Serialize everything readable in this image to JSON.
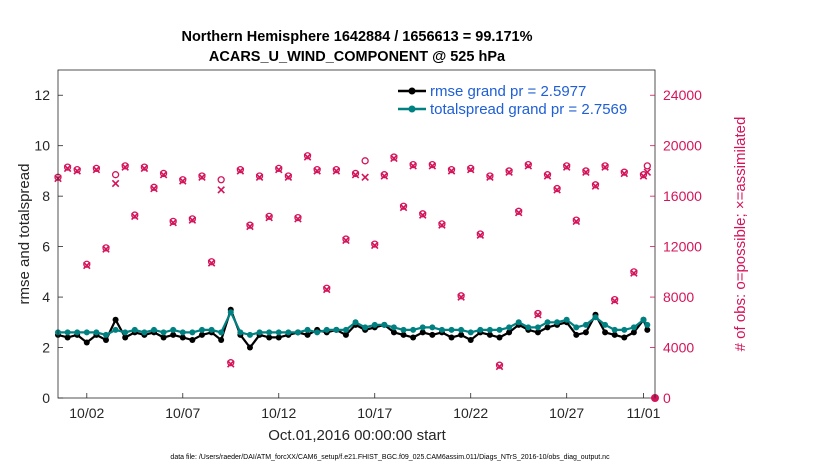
{
  "chart_data": {
    "type": "line",
    "title": "Northern Hemisphere 1642884 / 1656613 = 99.171%",
    "subtitle": "ACARS_U_WIND_COMPONENT @ 525 hPa",
    "xlabel": "Oct.01,2016 00:00:00 start",
    "ylabel": "rmse and totalspread",
    "ylabel_right": "# of obs: o=possible; ×=assimilated",
    "footnote": "data file: /Users/raeder/DAI/ATM_forcXX/CAM6_setup/f.e21.FHIST_BGC.f09_025.CAM6assim.011/Diags_NTrS_2016-10/obs_diag_output.nc",
    "xlim": [
      0.5,
      31.6
    ],
    "ylim": [
      0,
      13
    ],
    "ylim_right": [
      0,
      26000
    ],
    "x_ticks": [
      {
        "value": 2,
        "label": "10/02"
      },
      {
        "value": 7,
        "label": "10/07"
      },
      {
        "value": 12,
        "label": "10/12"
      },
      {
        "value": 17,
        "label": "10/17"
      },
      {
        "value": 22,
        "label": "10/22"
      },
      {
        "value": 27,
        "label": "10/27"
      },
      {
        "value": 31,
        "label": "11/01"
      }
    ],
    "y_ticks": [
      0,
      2,
      4,
      6,
      8,
      10,
      12
    ],
    "y_ticks_right": [
      {
        "value": 0,
        "label": "0"
      },
      {
        "value": 4000,
        "label": "4000"
      },
      {
        "value": 8000,
        "label": "8000"
      },
      {
        "value": 12000,
        "label": "12000"
      },
      {
        "value": 16000,
        "label": "16000"
      },
      {
        "value": 20000,
        "label": "20000"
      },
      {
        "value": 24000,
        "label": "24000"
      }
    ],
    "legend_position": "top-right",
    "series": [
      {
        "name": "rmse grand pr = 2.5977",
        "color": "#000000",
        "axis": "left",
        "x": [
          0.5,
          1.0,
          1.5,
          2.0,
          2.5,
          3.0,
          3.5,
          4.0,
          4.5,
          5.0,
          5.5,
          6.0,
          6.5,
          7.0,
          7.5,
          8.0,
          8.5,
          9.0,
          9.5,
          10.0,
          10.5,
          11.0,
          11.5,
          12.0,
          12.5,
          13.0,
          13.5,
          14.0,
          14.5,
          15.0,
          15.5,
          16.0,
          16.5,
          17.0,
          17.5,
          18.0,
          18.5,
          19.0,
          19.5,
          20.0,
          20.5,
          21.0,
          21.5,
          22.0,
          22.5,
          23.0,
          23.5,
          24.0,
          24.5,
          25.0,
          25.5,
          26.0,
          26.5,
          27.0,
          27.5,
          28.0,
          28.5,
          29.0,
          29.5,
          30.0,
          30.5,
          31.0,
          31.2
        ],
        "values": [
          2.5,
          2.4,
          2.5,
          2.2,
          2.5,
          2.3,
          3.1,
          2.4,
          2.6,
          2.5,
          2.6,
          2.4,
          2.5,
          2.4,
          2.3,
          2.5,
          2.6,
          2.3,
          3.5,
          2.5,
          2.0,
          2.5,
          2.4,
          2.4,
          2.5,
          2.6,
          2.5,
          2.7,
          2.6,
          2.7,
          2.5,
          2.9,
          2.7,
          2.8,
          2.9,
          2.6,
          2.5,
          2.4,
          2.6,
          2.5,
          2.6,
          2.4,
          2.5,
          2.3,
          2.6,
          2.5,
          2.4,
          2.6,
          2.9,
          2.7,
          2.6,
          2.8,
          2.9,
          3.0,
          2.5,
          2.6,
          3.3,
          2.6,
          2.5,
          2.4,
          2.6,
          3.1,
          2.7
        ]
      },
      {
        "name": "totalspread grand pr = 2.7569",
        "color": "#008080",
        "axis": "left",
        "x": [
          0.5,
          1.0,
          1.5,
          2.0,
          2.5,
          3.0,
          3.5,
          4.0,
          4.5,
          5.0,
          5.5,
          6.0,
          6.5,
          7.0,
          7.5,
          8.0,
          8.5,
          9.0,
          9.5,
          10.0,
          10.5,
          11.0,
          11.5,
          12.0,
          12.5,
          13.0,
          13.5,
          14.0,
          14.5,
          15.0,
          15.5,
          16.0,
          16.5,
          17.0,
          17.5,
          18.0,
          18.5,
          19.0,
          19.5,
          20.0,
          20.5,
          21.0,
          21.5,
          22.0,
          22.5,
          23.0,
          23.5,
          24.0,
          24.5,
          25.0,
          25.5,
          26.0,
          26.5,
          27.0,
          27.5,
          28.0,
          28.5,
          29.0,
          29.5,
          30.0,
          30.5,
          31.0,
          31.2
        ],
        "values": [
          2.6,
          2.6,
          2.6,
          2.6,
          2.6,
          2.5,
          2.7,
          2.6,
          2.7,
          2.6,
          2.7,
          2.6,
          2.7,
          2.6,
          2.6,
          2.7,
          2.7,
          2.6,
          3.4,
          2.6,
          2.5,
          2.6,
          2.6,
          2.6,
          2.6,
          2.6,
          2.7,
          2.6,
          2.7,
          2.7,
          2.7,
          3.0,
          2.8,
          2.9,
          2.9,
          2.8,
          2.7,
          2.7,
          2.8,
          2.8,
          2.7,
          2.7,
          2.7,
          2.6,
          2.7,
          2.7,
          2.7,
          2.8,
          3.0,
          2.8,
          2.8,
          3.0,
          3.0,
          3.1,
          2.8,
          2.9,
          3.2,
          2.9,
          2.7,
          2.7,
          2.8,
          3.1,
          2.9
        ]
      }
    ],
    "obs_possible": {
      "name": "possible",
      "color": "#d4145a",
      "x": [
        0.5,
        1.0,
        1.5,
        2.0,
        2.5,
        3.0,
        3.5,
        4.0,
        4.5,
        5.0,
        5.5,
        6.0,
        6.5,
        7.0,
        7.5,
        8.0,
        8.5,
        9.0,
        9.5,
        10.0,
        10.5,
        11.0,
        11.5,
        12.0,
        12.5,
        13.0,
        13.5,
        14.0,
        14.5,
        15.0,
        15.5,
        16.0,
        16.5,
        17.0,
        17.5,
        18.0,
        18.5,
        19.0,
        19.5,
        20.0,
        20.5,
        21.0,
        21.5,
        22.0,
        22.5,
        23.0,
        23.5,
        24.0,
        24.5,
        25.0,
        25.5,
        26.0,
        26.5,
        27.0,
        27.5,
        28.0,
        28.5,
        29.0,
        29.5,
        30.0,
        30.5,
        31.0,
        31.2
      ],
      "values": [
        17500,
        18300,
        18100,
        10600,
        18200,
        11900,
        17700,
        18400,
        14500,
        18300,
        16700,
        17800,
        14000,
        17300,
        14200,
        17600,
        10800,
        17300,
        2800,
        18100,
        13700,
        17600,
        14400,
        18200,
        17600,
        14300,
        19200,
        18100,
        8700,
        18100,
        12600,
        17800,
        18800,
        12200,
        17700,
        19100,
        15200,
        18500,
        14600,
        18500,
        13800,
        18100,
        8100,
        18200,
        13000,
        17600,
        2600,
        18000,
        14800,
        18500,
        6700,
        17700,
        16600,
        18400,
        14100,
        18000,
        16900,
        18400,
        7800,
        17900,
        10000,
        17700,
        18400
      ]
    },
    "obs_assimilated": {
      "name": "assimilated",
      "color": "#d4145a",
      "x": [
        0.5,
        1.0,
        1.5,
        2.0,
        2.5,
        3.0,
        3.5,
        4.0,
        4.5,
        5.0,
        5.5,
        6.0,
        6.5,
        7.0,
        7.5,
        8.0,
        8.5,
        9.0,
        9.5,
        10.0,
        10.5,
        11.0,
        11.5,
        12.0,
        12.5,
        13.0,
        13.5,
        14.0,
        14.5,
        15.0,
        15.5,
        16.0,
        16.5,
        17.0,
        17.5,
        18.0,
        18.5,
        19.0,
        19.5,
        20.0,
        20.5,
        21.0,
        21.5,
        22.0,
        22.5,
        23.0,
        23.5,
        24.0,
        24.5,
        25.0,
        25.5,
        26.0,
        26.5,
        27.0,
        27.5,
        28.0,
        28.5,
        29.0,
        29.5,
        30.0,
        30.5,
        31.0,
        31.2
      ],
      "values": [
        17400,
        18200,
        18000,
        10500,
        18100,
        11800,
        17000,
        18300,
        14400,
        18200,
        16600,
        17700,
        13900,
        17200,
        14100,
        17500,
        10700,
        16500,
        2700,
        18000,
        13600,
        17500,
        14300,
        18100,
        17500,
        14200,
        19100,
        18000,
        8600,
        18000,
        12500,
        17700,
        17500,
        12100,
        17600,
        19000,
        15100,
        18400,
        14500,
        18400,
        13700,
        18000,
        8000,
        18100,
        12900,
        17500,
        2500,
        17900,
        14700,
        18400,
        6600,
        17600,
        16500,
        18300,
        14000,
        17900,
        16800,
        18300,
        7700,
        17800,
        9900,
        17600,
        17900
      ]
    }
  }
}
